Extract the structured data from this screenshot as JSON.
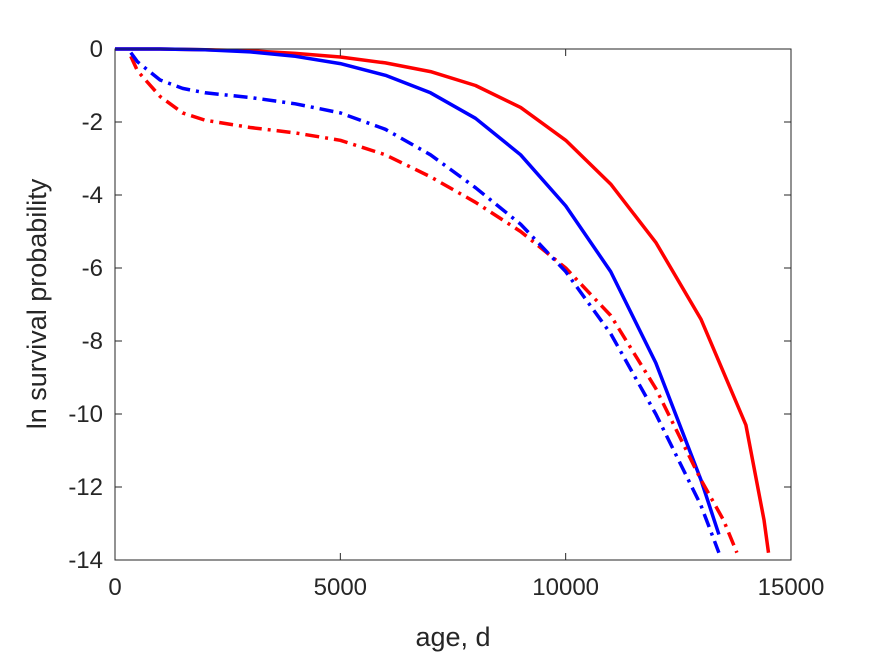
{
  "chart_data": {
    "type": "line",
    "title": "",
    "xlabel": "age, d",
    "ylabel": "ln survival probability",
    "xlim": [
      0,
      15000
    ],
    "ylim": [
      -14,
      0
    ],
    "xticks": [
      0,
      5000,
      10000,
      15000
    ],
    "yticks": [
      0,
      -2,
      -4,
      -6,
      -8,
      -10,
      -12,
      -14
    ],
    "grid": false,
    "legend": "none",
    "series": [
      {
        "color": "#ff0000",
        "style": "solid",
        "x": [
          0,
          1000,
          2000,
          3000,
          4000,
          5000,
          6000,
          7000,
          8000,
          9000,
          10000,
          11000,
          12000,
          13000,
          14000,
          14400,
          14500
        ],
        "y": [
          0,
          0,
          -0.02,
          -0.05,
          -0.12,
          -0.22,
          -0.38,
          -0.62,
          -1.0,
          -1.6,
          -2.5,
          -3.7,
          -5.3,
          -7.4,
          -10.3,
          -12.9,
          -13.8
        ]
      },
      {
        "color": "#0000ff",
        "style": "solid",
        "x": [
          0,
          1000,
          2000,
          3000,
          4000,
          5000,
          6000,
          7000,
          8000,
          9000,
          10000,
          11000,
          12000,
          13000,
          13400
        ],
        "y": [
          0,
          0,
          -0.02,
          -0.08,
          -0.2,
          -0.4,
          -0.72,
          -1.2,
          -1.9,
          -2.9,
          -4.3,
          -6.1,
          -8.6,
          -11.8,
          -13.3
        ]
      },
      {
        "color": "#ff0000",
        "style": "dashdot",
        "x": [
          350,
          500,
          1000,
          1500,
          2000,
          3000,
          4000,
          5000,
          6000,
          7000,
          8000,
          9000,
          10000,
          11000,
          12000,
          13000,
          13500,
          13800
        ],
        "y": [
          -0.2,
          -0.6,
          -1.3,
          -1.75,
          -1.95,
          -2.15,
          -2.3,
          -2.5,
          -2.9,
          -3.5,
          -4.2,
          -5.0,
          -6.0,
          -7.3,
          -9.3,
          -11.8,
          -12.9,
          -13.8
        ]
      },
      {
        "color": "#0000ff",
        "style": "dashdot",
        "x": [
          350,
          500,
          1000,
          1500,
          2000,
          3000,
          4000,
          5000,
          6000,
          7000,
          8000,
          9000,
          10000,
          11000,
          12000,
          13000,
          13400
        ],
        "y": [
          -0.1,
          -0.35,
          -0.85,
          -1.08,
          -1.2,
          -1.33,
          -1.5,
          -1.75,
          -2.2,
          -2.9,
          -3.8,
          -4.8,
          -6.1,
          -7.8,
          -10.0,
          -12.5,
          -13.8
        ]
      }
    ]
  }
}
